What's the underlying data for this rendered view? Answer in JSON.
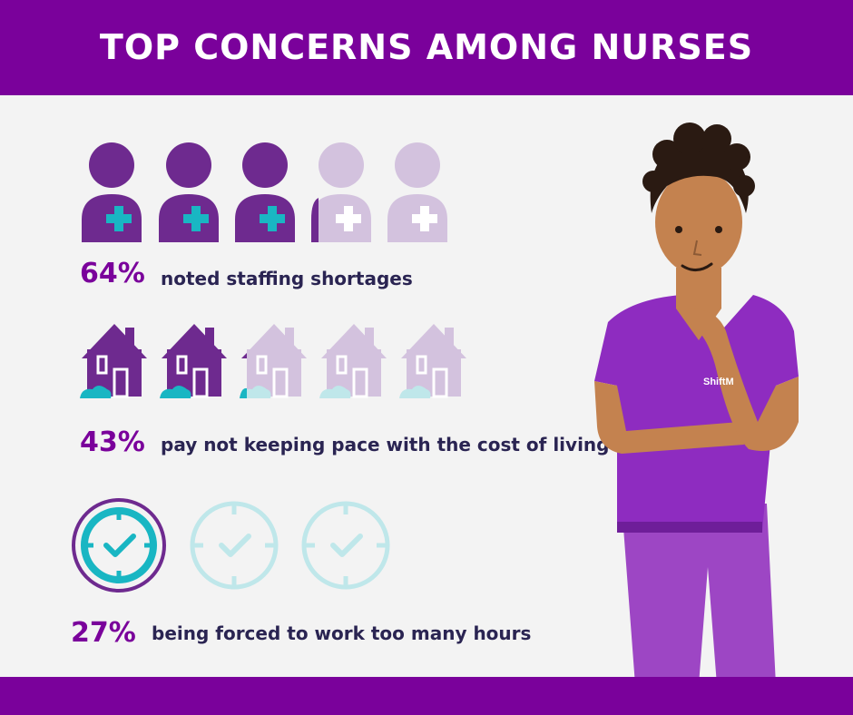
{
  "header": {
    "title": "TOP CONCERNS AMONG NURSES"
  },
  "colors": {
    "header_bg": "#7a019b",
    "filled_purple": "#6e2a8f",
    "light_purple": "#d3c2de",
    "teal": "#19b6c3",
    "light_teal": "#bfe7ea"
  },
  "stats": [
    {
      "percent": "64%",
      "label": "noted staffing shortages",
      "icon": "nurse-icon",
      "icon_count": 5,
      "filled_fraction": 0.64
    },
    {
      "percent": "43%",
      "label": "pay not keeping pace with the cost of living",
      "icon": "house-icon",
      "icon_count": 5,
      "filled_fraction": 0.43
    },
    {
      "percent": "27%",
      "label": "being forced to work too many hours",
      "icon": "clock-icon",
      "icon_count": 3,
      "filled_fraction": 0.27
    }
  ],
  "illustration": {
    "badge_text": "ShiftM"
  }
}
